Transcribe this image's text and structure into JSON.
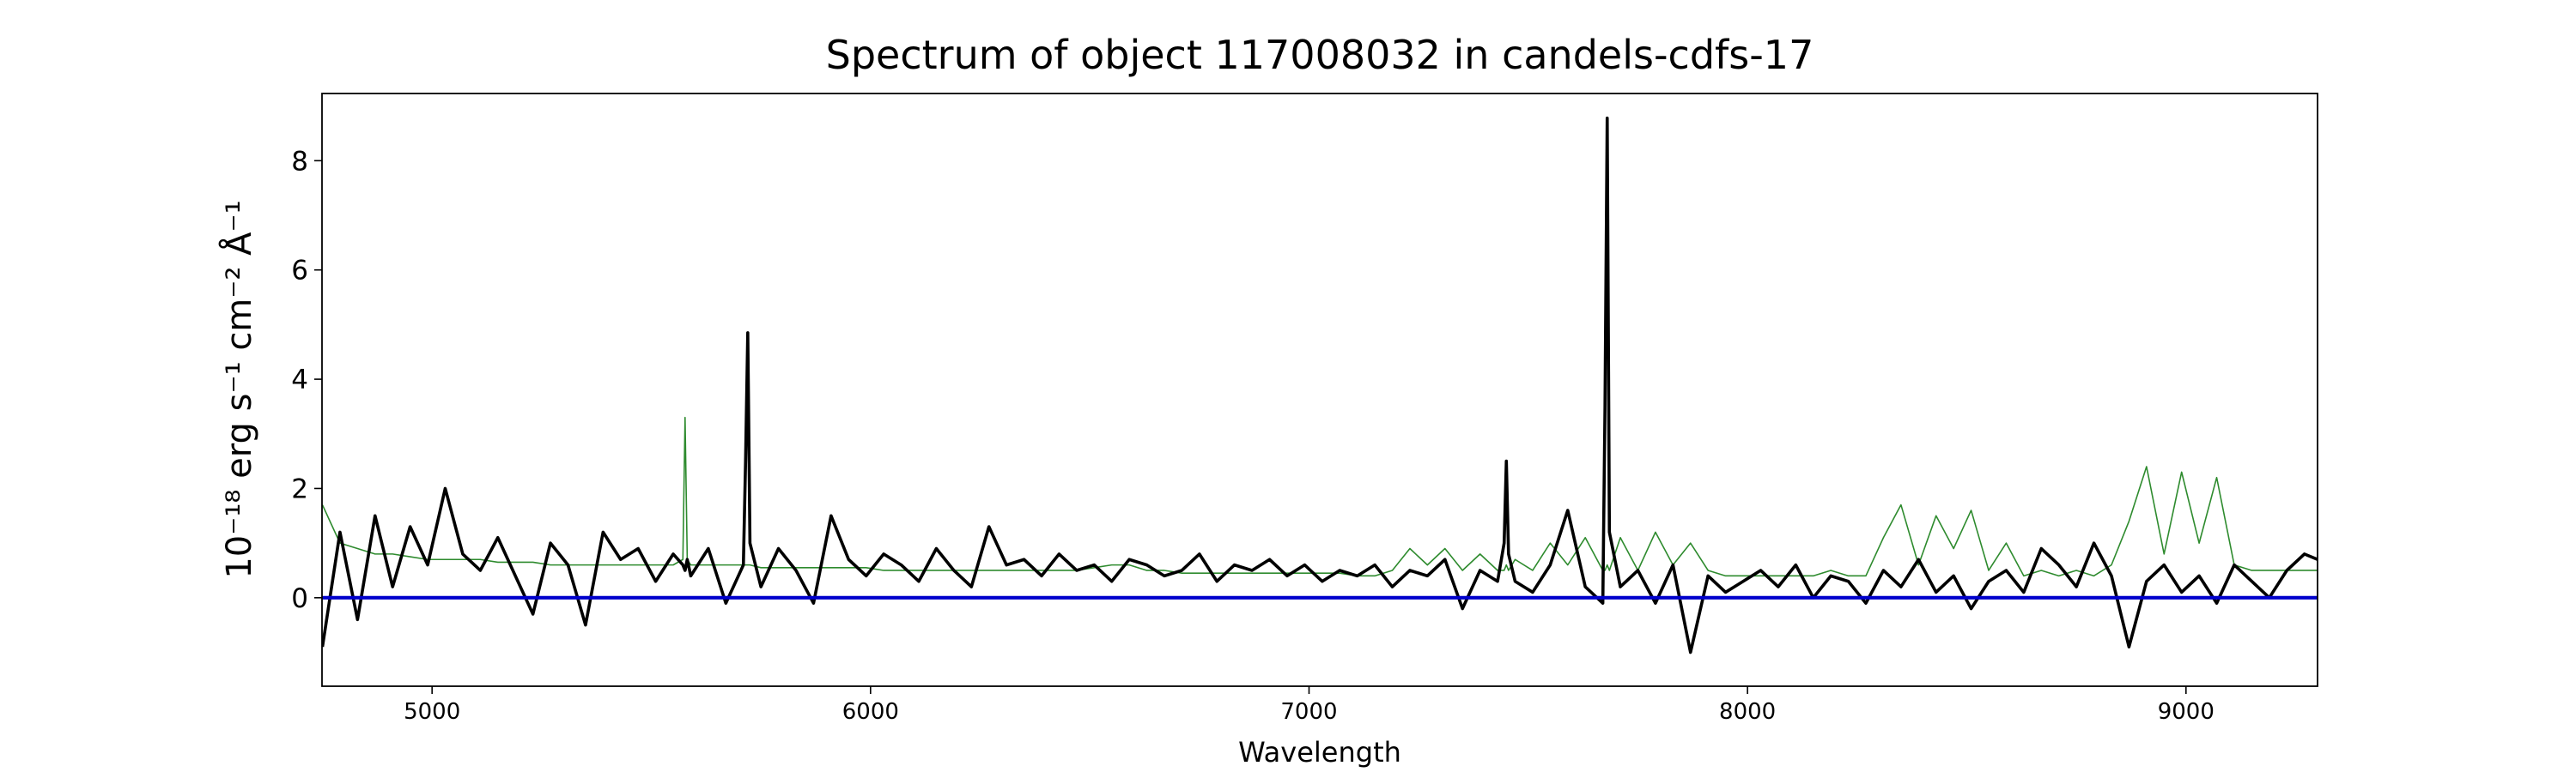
{
  "chart_data": {
    "type": "line",
    "title": "Spectrum of object 117008032 in candels-cdfs-17",
    "x_label": "Wavelength",
    "y_label": "10⁻¹⁸ erg s⁻¹ cm⁻² Å⁻¹",
    "xlim": [
      4749,
      9300
    ],
    "ylim": [
      -1.62,
      9.23
    ],
    "xticks": [
      5000,
      6000,
      7000,
      8000,
      9000
    ],
    "yticks": [
      0,
      2,
      4,
      6,
      8
    ],
    "grid": false,
    "series": [
      {
        "color": "#2e8b2e",
        "x": [
          4750,
          4790,
          4830,
          4870,
          4910,
          4950,
          4990,
          5030,
          5070,
          5110,
          5150,
          5190,
          5230,
          5270,
          5310,
          5350,
          5390,
          5430,
          5470,
          5510,
          5550,
          5572,
          5577,
          5582,
          5590,
          5630,
          5670,
          5710,
          5715,
          5720,
          5725,
          5750,
          5790,
          5830,
          5870,
          5910,
          5950,
          5990,
          6030,
          6070,
          6110,
          6150,
          6190,
          6230,
          6270,
          6310,
          6350,
          6390,
          6430,
          6470,
          6510,
          6550,
          6590,
          6630,
          6670,
          6710,
          6750,
          6790,
          6830,
          6870,
          6910,
          6950,
          6990,
          7030,
          7070,
          7110,
          7150,
          7190,
          7230,
          7270,
          7310,
          7350,
          7390,
          7430,
          7445,
          7450,
          7455,
          7470,
          7510,
          7550,
          7590,
          7630,
          7670,
          7675,
          7680,
          7685,
          7710,
          7750,
          7790,
          7830,
          7870,
          7910,
          7950,
          7990,
          8030,
          8070,
          8110,
          8150,
          8190,
          8230,
          8270,
          8310,
          8350,
          8390,
          8430,
          8470,
          8510,
          8550,
          8590,
          8630,
          8670,
          8710,
          8750,
          8790,
          8830,
          8870,
          8910,
          8950,
          8990,
          9030,
          9070,
          9110,
          9150,
          9190,
          9230,
          9270,
          9300
        ],
        "values": [
          1.7,
          1.0,
          0.9,
          0.8,
          0.8,
          0.75,
          0.7,
          0.7,
          0.7,
          0.7,
          0.65,
          0.65,
          0.65,
          0.6,
          0.6,
          0.6,
          0.6,
          0.6,
          0.6,
          0.6,
          0.6,
          0.7,
          3.3,
          0.7,
          0.6,
          0.6,
          0.6,
          0.6,
          0.6,
          0.6,
          0.6,
          0.55,
          0.55,
          0.55,
          0.55,
          0.55,
          0.55,
          0.55,
          0.5,
          0.5,
          0.5,
          0.5,
          0.5,
          0.5,
          0.5,
          0.5,
          0.5,
          0.5,
          0.5,
          0.5,
          0.55,
          0.6,
          0.6,
          0.5,
          0.5,
          0.45,
          0.45,
          0.45,
          0.45,
          0.45,
          0.45,
          0.45,
          0.45,
          0.45,
          0.45,
          0.4,
          0.4,
          0.5,
          0.9,
          0.6,
          0.9,
          0.5,
          0.8,
          0.5,
          0.5,
          0.6,
          0.5,
          0.7,
          0.5,
          1.0,
          0.6,
          1.1,
          0.5,
          0.5,
          0.6,
          0.5,
          1.1,
          0.5,
          1.2,
          0.6,
          1.0,
          0.5,
          0.4,
          0.4,
          0.4,
          0.4,
          0.4,
          0.4,
          0.5,
          0.4,
          0.4,
          1.1,
          1.7,
          0.6,
          1.5,
          0.9,
          1.6,
          0.5,
          1.0,
          0.4,
          0.5,
          0.4,
          0.5,
          0.4,
          0.6,
          1.4,
          2.4,
          0.8,
          2.3,
          1.0,
          2.2,
          0.6,
          0.5,
          0.5,
          0.5,
          0.5,
          0.5
        ]
      },
      {
        "color": "#000000",
        "x": [
          4750,
          4790,
          4830,
          4870,
          4910,
          4950,
          4990,
          5030,
          5070,
          5110,
          5150,
          5190,
          5230,
          5270,
          5310,
          5350,
          5390,
          5430,
          5470,
          5510,
          5550,
          5572,
          5577,
          5582,
          5590,
          5630,
          5670,
          5710,
          5715,
          5720,
          5725,
          5750,
          5790,
          5830,
          5870,
          5910,
          5950,
          5990,
          6030,
          6070,
          6110,
          6150,
          6190,
          6230,
          6270,
          6310,
          6350,
          6390,
          6430,
          6470,
          6510,
          6550,
          6590,
          6630,
          6670,
          6710,
          6750,
          6790,
          6830,
          6870,
          6910,
          6950,
          6990,
          7030,
          7070,
          7110,
          7150,
          7190,
          7230,
          7270,
          7310,
          7350,
          7390,
          7430,
          7445,
          7450,
          7455,
          7470,
          7510,
          7550,
          7590,
          7630,
          7670,
          7675,
          7680,
          7685,
          7710,
          7750,
          7790,
          7830,
          7870,
          7910,
          7950,
          7990,
          8030,
          8070,
          8110,
          8150,
          8190,
          8230,
          8270,
          8310,
          8350,
          8390,
          8430,
          8470,
          8510,
          8550,
          8590,
          8630,
          8670,
          8710,
          8750,
          8790,
          8830,
          8870,
          8910,
          8950,
          8990,
          9030,
          9070,
          9110,
          9150,
          9190,
          9230,
          9270,
          9300
        ],
        "values": [
          -0.9,
          1.2,
          -0.4,
          1.5,
          0.2,
          1.3,
          0.6,
          2.0,
          0.8,
          0.5,
          1.1,
          0.4,
          -0.3,
          1.0,
          0.6,
          -0.5,
          1.2,
          0.7,
          0.9,
          0.3,
          0.8,
          0.6,
          0.5,
          0.7,
          0.4,
          0.9,
          -0.1,
          0.6,
          2.5,
          4.85,
          1.0,
          0.2,
          0.9,
          0.5,
          -0.1,
          1.5,
          0.7,
          0.4,
          0.8,
          0.6,
          0.3,
          0.9,
          0.5,
          0.2,
          1.3,
          0.6,
          0.7,
          0.4,
          0.8,
          0.5,
          0.6,
          0.3,
          0.7,
          0.6,
          0.4,
          0.5,
          0.8,
          0.3,
          0.6,
          0.5,
          0.7,
          0.4,
          0.6,
          0.3,
          0.5,
          0.4,
          0.6,
          0.2,
          0.5,
          0.4,
          0.7,
          -0.2,
          0.5,
          0.3,
          1.0,
          2.5,
          0.8,
          0.3,
          0.1,
          0.6,
          1.6,
          0.2,
          -0.1,
          3.5,
          8.78,
          1.2,
          0.2,
          0.5,
          -0.1,
          0.6,
          -1.0,
          0.4,
          0.1,
          0.3,
          0.5,
          0.2,
          0.6,
          0.0,
          0.4,
          0.3,
          -0.1,
          0.5,
          0.2,
          0.7,
          0.1,
          0.4,
          -0.2,
          0.3,
          0.5,
          0.1,
          0.9,
          0.6,
          0.2,
          1.0,
          0.4,
          -0.9,
          0.3,
          0.6,
          0.1,
          0.4,
          -0.1,
          0.6,
          0.3,
          0.0,
          0.5,
          0.8,
          0.7
        ]
      },
      {
        "color": "#0000cc",
        "x": [
          4749,
          9300
        ],
        "values": [
          0,
          0
        ]
      }
    ]
  }
}
